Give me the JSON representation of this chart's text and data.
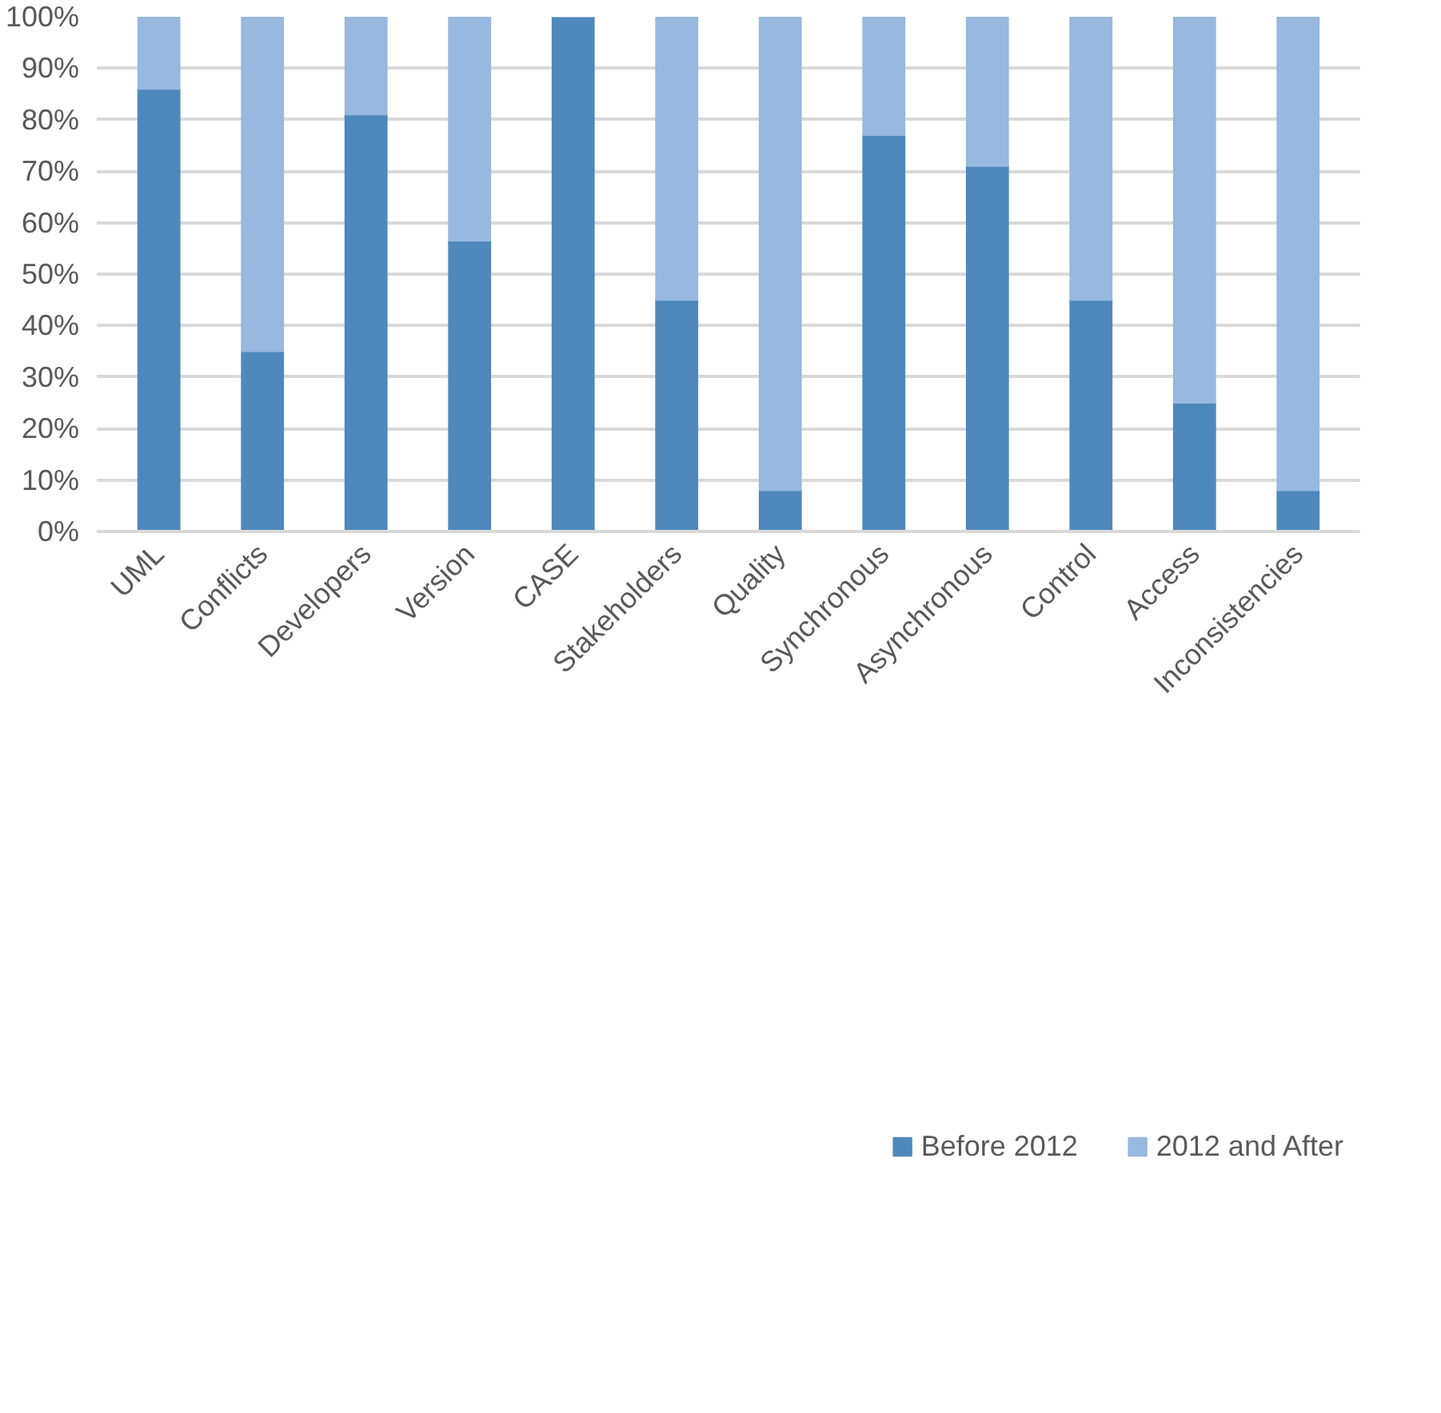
{
  "chart_data": {
    "type": "bar",
    "stacked": true,
    "categories": [
      "UML",
      "Conflicts",
      "Developers",
      "Version",
      "CASE",
      "Stakeholders",
      "Quality",
      "Synchronous",
      "Asynchronous",
      "Control",
      "Access",
      "Inconsistencies"
    ],
    "series": [
      {
        "name": "Before 2012",
        "color": "#4f88bc",
        "values": [
          86,
          35,
          81,
          56.5,
          100,
          45,
          8,
          77,
          71,
          45,
          25,
          8
        ]
      },
      {
        "name": "2012 and After",
        "color": "#97b8df",
        "values": [
          14,
          65,
          19,
          43.5,
          0,
          55,
          92,
          23,
          29,
          55,
          75,
          92
        ]
      }
    ],
    "ylim": [
      0,
      100
    ],
    "yticks": [
      {
        "value": 0,
        "label": "0%"
      },
      {
        "value": 10,
        "label": "10%"
      },
      {
        "value": 20,
        "label": "20%"
      },
      {
        "value": 30,
        "label": "30%"
      },
      {
        "value": 40,
        "label": "40%"
      },
      {
        "value": 50,
        "label": "50%"
      },
      {
        "value": 60,
        "label": "60%"
      },
      {
        "value": 70,
        "label": "70%"
      },
      {
        "value": 80,
        "label": "80%"
      },
      {
        "value": 90,
        "label": "90%"
      },
      {
        "value": 100,
        "label": "100%"
      }
    ],
    "grid": "y",
    "legend": "bottom"
  }
}
